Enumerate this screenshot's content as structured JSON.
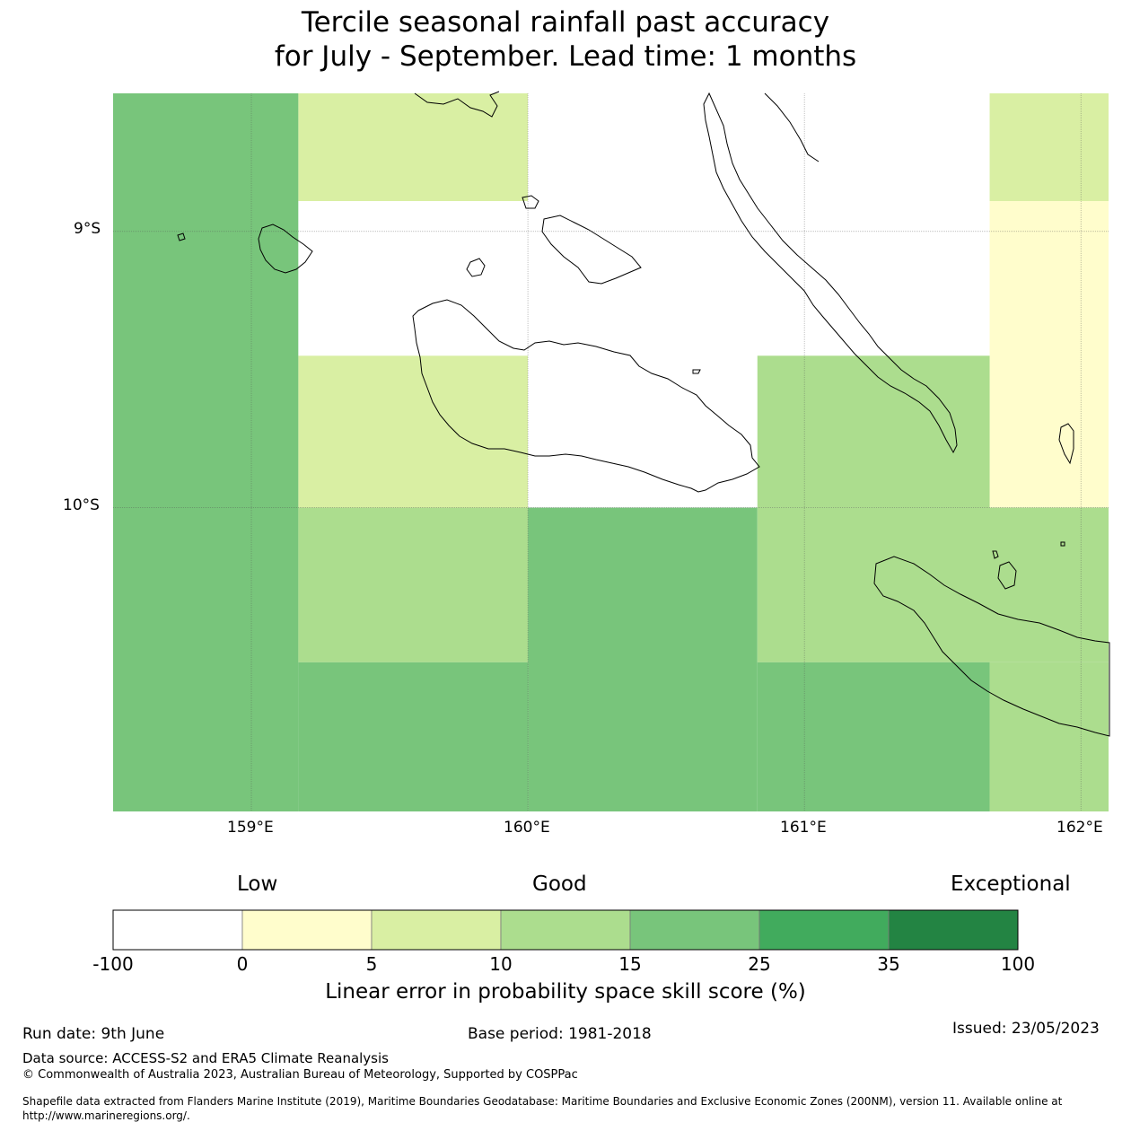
{
  "title": {
    "line1": "Tercile seasonal rainfall past accuracy",
    "line2": "for July - September. Lead time: 1 months"
  },
  "map": {
    "lon_labels": [
      "159°E",
      "160°E",
      "161°E",
      "162°E"
    ],
    "lat_labels": [
      "9°S",
      "10°S"
    ],
    "lon_range": [
      158.5,
      162.1
    ],
    "lat_range": [
      -11.1,
      -8.5
    ],
    "grid_cells": [
      {
        "lon": [
          158.5,
          159.17
        ],
        "lat": [
          -8.5,
          -11.1
        ],
        "category": "15-25",
        "color": "#78c57b"
      },
      {
        "lon": [
          159.17,
          160.0
        ],
        "lat": [
          -8.5,
          -8.89
        ],
        "category": "5-10",
        "color": "#d9efa3"
      },
      {
        "lon": [
          159.17,
          160.0
        ],
        "lat": [
          -8.89,
          -9.45
        ],
        "category": "-100-0",
        "color": "#ffffff"
      },
      {
        "lon": [
          160.0,
          161.67
        ],
        "lat": [
          -8.5,
          -9.45
        ],
        "category": "-100-0",
        "color": "#ffffff"
      },
      {
        "lon": [
          161.67,
          162.1
        ],
        "lat": [
          -8.5,
          -8.89
        ],
        "category": "5-10",
        "color": "#d9efa3"
      },
      {
        "lon": [
          161.67,
          162.1
        ],
        "lat": [
          -8.89,
          -10.0
        ],
        "category": "0-5",
        "color": "#fffdcc"
      },
      {
        "lon": [
          159.17,
          160.0
        ],
        "lat": [
          -9.45,
          -10.0
        ],
        "category": "5-10",
        "color": "#d9efa3"
      },
      {
        "lon": [
          160.0,
          160.83
        ],
        "lat": [
          -9.45,
          -10.0
        ],
        "category": "-100-0",
        "color": "#ffffff"
      },
      {
        "lon": [
          160.83,
          161.67
        ],
        "lat": [
          -9.45,
          -10.0
        ],
        "category": "10-15",
        "color": "#acdd8e"
      },
      {
        "lon": [
          159.17,
          160.0
        ],
        "lat": [
          -10.0,
          -10.56
        ],
        "category": "10-15",
        "color": "#acdd8e"
      },
      {
        "lon": [
          160.0,
          160.83
        ],
        "lat": [
          -10.0,
          -11.1
        ],
        "category": "15-25",
        "color": "#78c57b"
      },
      {
        "lon": [
          160.83,
          162.1
        ],
        "lat": [
          -10.0,
          -10.56
        ],
        "category": "10-15",
        "color": "#acdd8e"
      },
      {
        "lon": [
          159.17,
          160.0
        ],
        "lat": [
          -10.56,
          -11.1
        ],
        "category": "15-25",
        "color": "#78c57b"
      },
      {
        "lon": [
          160.83,
          161.67
        ],
        "lat": [
          -10.56,
          -11.1
        ],
        "category": "15-25",
        "color": "#78c57b"
      },
      {
        "lon": [
          161.67,
          162.1
        ],
        "lat": [
          -10.56,
          -11.1
        ],
        "category": "10-15",
        "color": "#acdd8e"
      }
    ]
  },
  "colorbar": {
    "words": {
      "low": "Low",
      "good": "Good",
      "exceptional": "Exceptional"
    },
    "ticks": [
      "-100",
      "0",
      "5",
      "10",
      "15",
      "25",
      "35",
      "100"
    ],
    "colors": [
      "#ffffff",
      "#fffdcc",
      "#d9efa3",
      "#acdd8e",
      "#78c57b",
      "#41ab5d",
      "#238443"
    ],
    "label": "Linear error in probability space skill score (%)"
  },
  "footer": {
    "run_date": "Run date: 9th June",
    "base_period": "Base period: 1981-2018",
    "issued": "Issued: 23/05/2023",
    "data_source": "Data source: ACCESS-S2 and ERA5 Climate Reanalysis",
    "copyright": "© Commonwealth of Australia 2023, Australian Bureau of Meteorology, Supported by COSPPac",
    "shapefile_line1": "Shapefile data extracted from Flanders Marine Institute (2019), Maritime Boundaries Geodatabase: Maritime Boundaries and Exclusive Economic Zones (200NM), version 11. Available online at",
    "shapefile_line2": "http://www.marineregions.org/."
  }
}
